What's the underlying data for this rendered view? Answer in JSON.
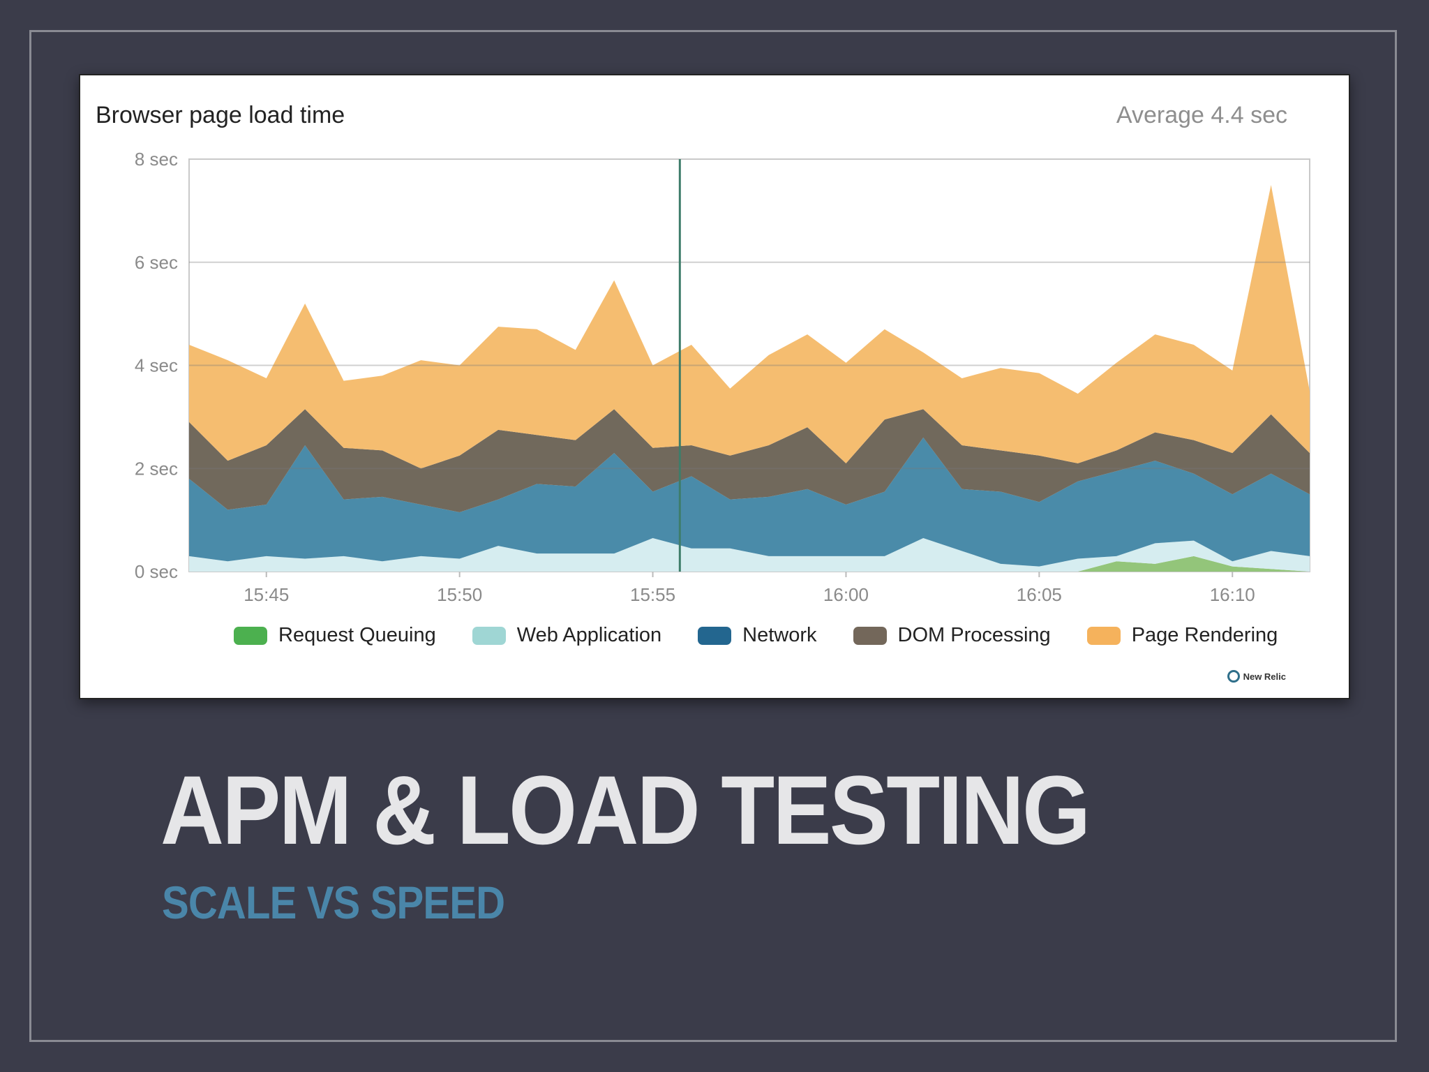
{
  "slide": {
    "title": "APM & LOAD TESTING",
    "subtitle": "SCALE VS SPEED"
  },
  "brand": {
    "label": "New Relic"
  },
  "colors": {
    "background": "#3b3c4a",
    "title": "#e6e6e8",
    "subtitle": "#4a86a9"
  },
  "chart_data": {
    "type": "area",
    "stacked": true,
    "title": "Browser page load time",
    "summary": "Average 4.4 sec",
    "ylim": [
      0,
      8
    ],
    "yticks": [
      {
        "value": 0,
        "label": "0 sec"
      },
      {
        "value": 2,
        "label": "2 sec"
      },
      {
        "value": 4,
        "label": "4 sec"
      },
      {
        "value": 6,
        "label": "6 sec"
      },
      {
        "value": 8,
        "label": "8 sec"
      }
    ],
    "xticks": [
      {
        "index": 2,
        "label": "15:45"
      },
      {
        "index": 7,
        "label": "15:50"
      },
      {
        "index": 12,
        "label": "15:55"
      },
      {
        "index": 17,
        "label": "16:00"
      },
      {
        "index": 22,
        "label": "16:05"
      },
      {
        "index": 27,
        "label": "16:10"
      }
    ],
    "marker_index": 12.7,
    "grid": true,
    "legend_position": "bottom",
    "x_count": 30,
    "series": [
      {
        "name": "Request Queuing",
        "color": "#4cb04f",
        "area_color": "#93c57a",
        "values": [
          0,
          0,
          0,
          0,
          0,
          0,
          0,
          0,
          0,
          0,
          0,
          0,
          0,
          0,
          0,
          0,
          0,
          0,
          0,
          0,
          0,
          0,
          0,
          0,
          0.2,
          0.15,
          0.3,
          0.1,
          0.05,
          0
        ]
      },
      {
        "name": "Web Application",
        "color": "#9fd6d4",
        "area_color": "#d6edf0",
        "values": [
          0.3,
          0.2,
          0.3,
          0.25,
          0.3,
          0.2,
          0.3,
          0.25,
          0.5,
          0.35,
          0.35,
          0.35,
          0.65,
          0.45,
          0.45,
          0.3,
          0.3,
          0.3,
          0.3,
          0.65,
          0.4,
          0.15,
          0.1,
          0.25,
          0.1,
          0.4,
          0.3,
          0.1,
          0.35,
          0.3
        ]
      },
      {
        "name": "Network",
        "color": "#23668f",
        "area_color": "#4a8ba9",
        "values": [
          1.5,
          1.0,
          1.0,
          2.2,
          1.1,
          1.25,
          1.0,
          0.9,
          0.9,
          1.35,
          1.3,
          1.95,
          0.9,
          1.4,
          0.95,
          1.15,
          1.3,
          1.0,
          1.25,
          1.95,
          1.2,
          1.4,
          1.25,
          1.5,
          1.65,
          1.6,
          1.3,
          1.3,
          1.5,
          1.2
        ]
      },
      {
        "name": "DOM Processing",
        "color": "#73675a",
        "area_color": "#71695c",
        "values": [
          1.1,
          0.95,
          1.15,
          0.7,
          1.0,
          0.9,
          0.7,
          1.1,
          1.35,
          0.95,
          0.9,
          0.85,
          0.85,
          0.6,
          0.85,
          1.0,
          1.2,
          0.8,
          1.4,
          0.55,
          0.85,
          0.8,
          0.9,
          0.35,
          0.4,
          0.55,
          0.65,
          0.8,
          1.15,
          0.8
        ]
      },
      {
        "name": "Page Rendering",
        "color": "#f5b25c",
        "area_color": "#f5bd70",
        "values": [
          1.5,
          1.95,
          1.3,
          2.05,
          1.3,
          1.45,
          2.1,
          1.75,
          2.0,
          2.05,
          1.75,
          2.5,
          1.6,
          1.95,
          1.3,
          1.75,
          1.8,
          1.95,
          1.75,
          1.1,
          1.3,
          1.6,
          1.6,
          1.35,
          1.7,
          1.9,
          1.85,
          1.6,
          4.45,
          1.2
        ]
      }
    ]
  }
}
